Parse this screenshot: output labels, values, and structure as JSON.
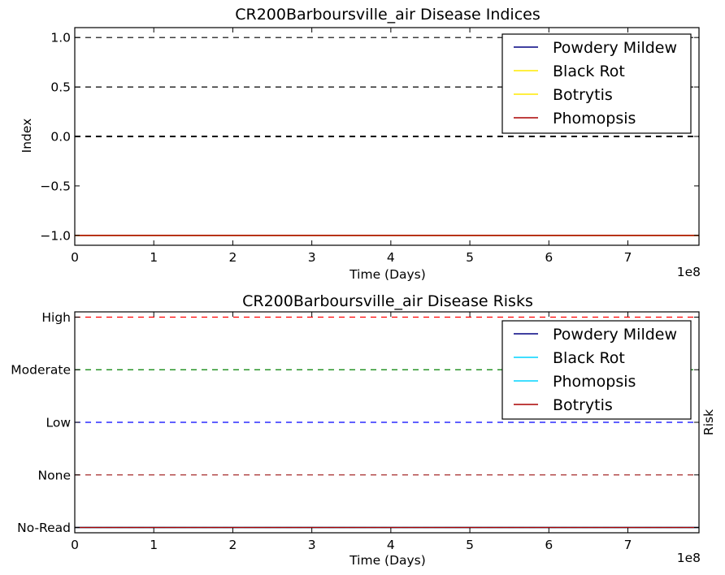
{
  "chart_data": [
    {
      "type": "line",
      "title": "CR200Barboursville_air Disease Indices",
      "xlabel": "Time (Days)",
      "ylabel": "Index",
      "x_offset_text": "1e8",
      "xlim": [
        0,
        7.9
      ],
      "ylim": [
        -1.1,
        1.1
      ],
      "xticks": [
        "0",
        "1",
        "2",
        "3",
        "4",
        "5",
        "6",
        "7"
      ],
      "yticks": [
        {
          "v": 1.0,
          "label": "1.0"
        },
        {
          "v": 0.5,
          "label": "0.5"
        },
        {
          "v": 0.0,
          "label": "0.0"
        },
        {
          "v": -0.5,
          "label": "−0.5"
        },
        {
          "v": -1.0,
          "label": "−1.0"
        }
      ],
      "reference_lines": [
        {
          "y": 1.0,
          "color": "#000000",
          "style": "dashed"
        },
        {
          "y": 0.5,
          "color": "#000000",
          "style": "dashed"
        },
        {
          "y": 0.0,
          "color": "#000000",
          "style": "dashed-bold"
        }
      ],
      "series": [
        {
          "name": "Powdery Mildew",
          "color": "#000080",
          "x": [
            0,
            7.9
          ],
          "y": [
            -1,
            -1
          ]
        },
        {
          "name": "Black Rot",
          "color": "#ffea00",
          "x": [
            0,
            7.9
          ],
          "y": [
            -1,
            -1
          ]
        },
        {
          "name": "Botrytis",
          "color": "#ffea00",
          "x": [
            0,
            7.9
          ],
          "y": [
            -1,
            -1
          ]
        },
        {
          "name": "Phomopsis",
          "color": "#aa0000",
          "x": [
            0,
            7.9
          ],
          "y": [
            -1,
            -1
          ]
        }
      ],
      "legend": "top-right",
      "grid": false
    },
    {
      "type": "line",
      "title": "CR200Barboursville_air Disease Risks",
      "xlabel": "Time (Days)",
      "ylabel": "Risk",
      "ylabel_side": "right",
      "x_offset_text": "1e8",
      "xlim": [
        0,
        7.9
      ],
      "ylim": [
        -0.1,
        4.1
      ],
      "xticks": [
        "0",
        "1",
        "2",
        "3",
        "4",
        "5",
        "6",
        "7"
      ],
      "yticks": [
        {
          "v": 4,
          "label": "High"
        },
        {
          "v": 3,
          "label": "Moderate"
        },
        {
          "v": 2,
          "label": "Low"
        },
        {
          "v": 1,
          "label": "None"
        },
        {
          "v": 0,
          "label": "No-Read"
        }
      ],
      "reference_lines": [
        {
          "y": 4,
          "color": "#ff0000",
          "style": "dashed"
        },
        {
          "y": 3,
          "color": "#008000",
          "style": "dashed"
        },
        {
          "y": 2,
          "color": "#0000ff",
          "style": "dashed"
        },
        {
          "y": 1,
          "color": "#a52a2a",
          "style": "dashed"
        },
        {
          "y": 0,
          "color": "#000000",
          "style": "dashed"
        }
      ],
      "series": [
        {
          "name": "Powdery Mildew",
          "color": "#000080",
          "x": [
            0,
            7.9
          ],
          "y": [
            0,
            0
          ]
        },
        {
          "name": "Black Rot",
          "color": "#00d4ff",
          "x": [
            0,
            7.9
          ],
          "y": [
            0,
            0
          ]
        },
        {
          "name": "Phomopsis",
          "color": "#00d4ff",
          "x": [
            0,
            7.9
          ],
          "y": [
            0,
            0
          ]
        },
        {
          "name": "Botrytis",
          "color": "#aa0000",
          "x": [
            0,
            7.9
          ],
          "y": [
            0,
            0
          ]
        }
      ],
      "legend": "top-right",
      "grid": false
    }
  ]
}
